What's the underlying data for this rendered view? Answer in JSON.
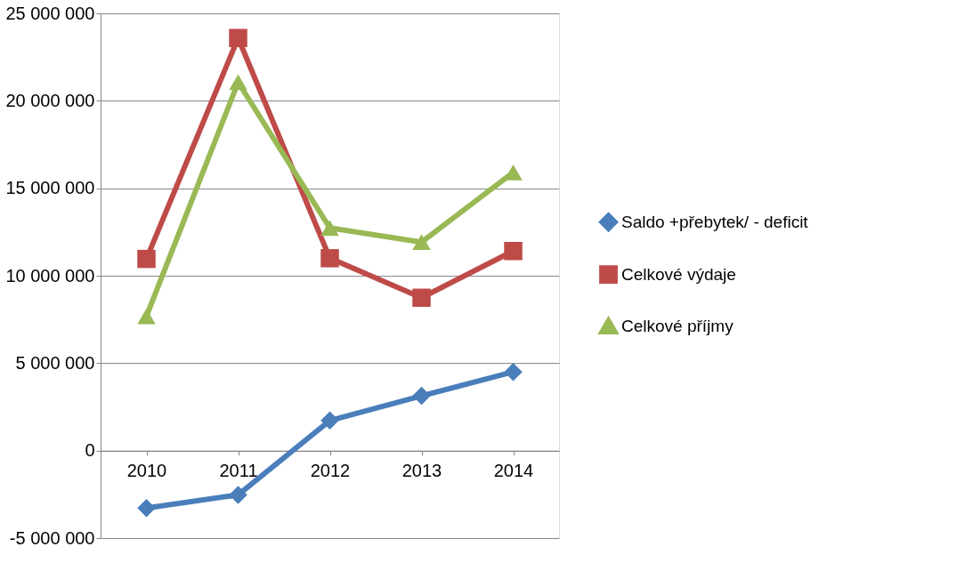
{
  "chart_data": {
    "type": "line",
    "categories": [
      "2010",
      "2011",
      "2012",
      "2013",
      "2014"
    ],
    "series": [
      {
        "name": "Saldo +přebytek/ - deficit",
        "color": "#4a7ebb",
        "marker": "diamond",
        "values": [
          -3280000,
          -2530000,
          1720000,
          3130000,
          4500000
        ]
      },
      {
        "name": "Celkové výdaje",
        "color": "#be4b48",
        "marker": "square",
        "values": [
          10960000,
          23590000,
          11000000,
          8740000,
          11410000
        ]
      },
      {
        "name": "Celkové příjmy",
        "color": "#98b954",
        "marker": "triangle",
        "values": [
          7680000,
          21060000,
          12730000,
          11920000,
          15900000
        ]
      }
    ],
    "ylim": [
      -5000000,
      25000000
    ],
    "yticks": [
      {
        "value": -5000000,
        "label": "-5 000 000"
      },
      {
        "value": 0,
        "label": "0"
      },
      {
        "value": 5000000,
        "label": "5 000 000"
      },
      {
        "value": 10000000,
        "label": "10 000 000"
      },
      {
        "value": 15000000,
        "label": "15 000 000"
      },
      {
        "value": 20000000,
        "label": "20 000 000"
      },
      {
        "value": 25000000,
        "label": "25 000 000"
      }
    ],
    "grid": "y",
    "legend": "right",
    "line_style": "solid"
  }
}
